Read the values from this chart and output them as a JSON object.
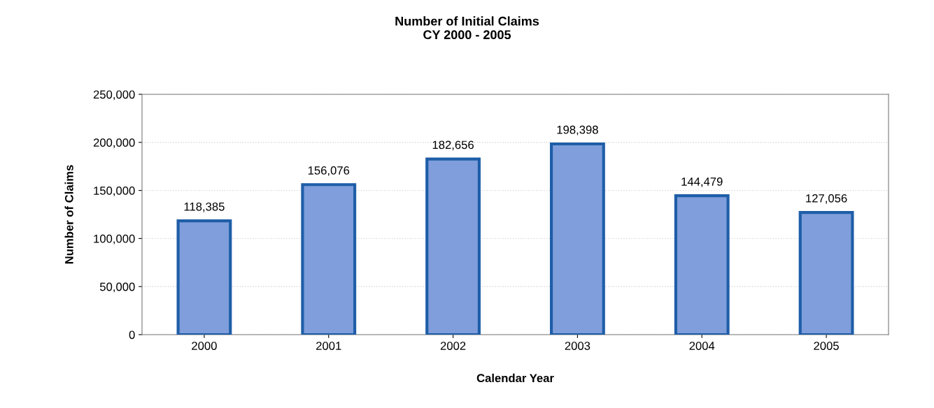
{
  "chart_data": {
    "type": "bar",
    "title": "Number of Initial Claims\nCY 2000 - 2005",
    "xlabel": "Calendar Year",
    "ylabel": "Number of Claims",
    "categories": [
      "2000",
      "2001",
      "2002",
      "2003",
      "2004",
      "2005"
    ],
    "values": [
      118385,
      156076,
      182656,
      198398,
      144479,
      127056
    ],
    "color": "#7f9edb",
    "ylim": [
      0,
      250000
    ],
    "yticks": [
      {
        "value": 0,
        "label": "0"
      },
      {
        "value": 50000,
        "label": "50,000"
      },
      {
        "value": 100000,
        "label": "100,000"
      },
      {
        "value": 150000,
        "label": "150,000"
      },
      {
        "value": 200000,
        "label": "200,000"
      },
      {
        "value": 250000,
        "label": "250,000"
      }
    ],
    "value_labels": [
      "118,385",
      "156,076",
      "182,656",
      "198,398",
      "144,479",
      "127,056"
    ],
    "grid": "y",
    "legend": false
  }
}
